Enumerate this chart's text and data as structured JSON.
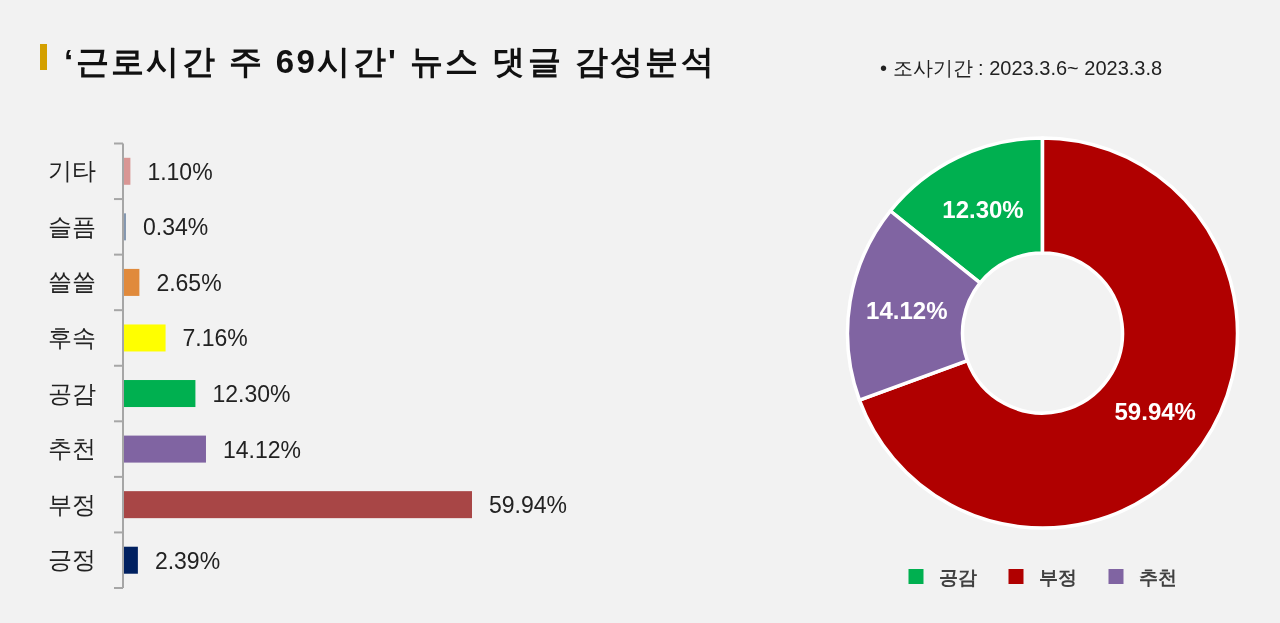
{
  "chart_data": [
    {
      "type": "bar",
      "orientation": "horizontal",
      "title": "‘근로시간 주 69시간' 뉴스 댓글 감성분석",
      "annotations": [
        "• 조사기간 : 2023.3.6~ 2023.3.8"
      ],
      "categories": [
        "기타",
        "슬픔",
        "쓸쓸",
        "후속",
        "공감",
        "추천",
        "부정",
        "긍정"
      ],
      "values": [
        1.1,
        0.34,
        2.65,
        7.16,
        12.3,
        14.12,
        59.94,
        2.39
      ],
      "colors": [
        "#d99694",
        "#8497b0",
        "#e08a3c",
        "#ffff00",
        "#00b050",
        "#8064a2",
        "#a84646",
        "#002060"
      ],
      "value_labels": [
        "1.10%",
        "0.34%",
        "2.65%",
        "7.16%",
        "12.30%",
        "14.12%",
        "59.94%",
        "2.39%"
      ]
    },
    {
      "type": "donut",
      "categories": [
        "공감",
        "부정",
        "추천"
      ],
      "values": [
        12.3,
        59.94,
        14.12
      ],
      "colors": [
        "#00b050",
        "#b00000",
        "#8064a2"
      ],
      "value_labels": [
        "12.30%",
        "59.94%",
        "14.12%"
      ],
      "legend": "bottom"
    }
  ]
}
